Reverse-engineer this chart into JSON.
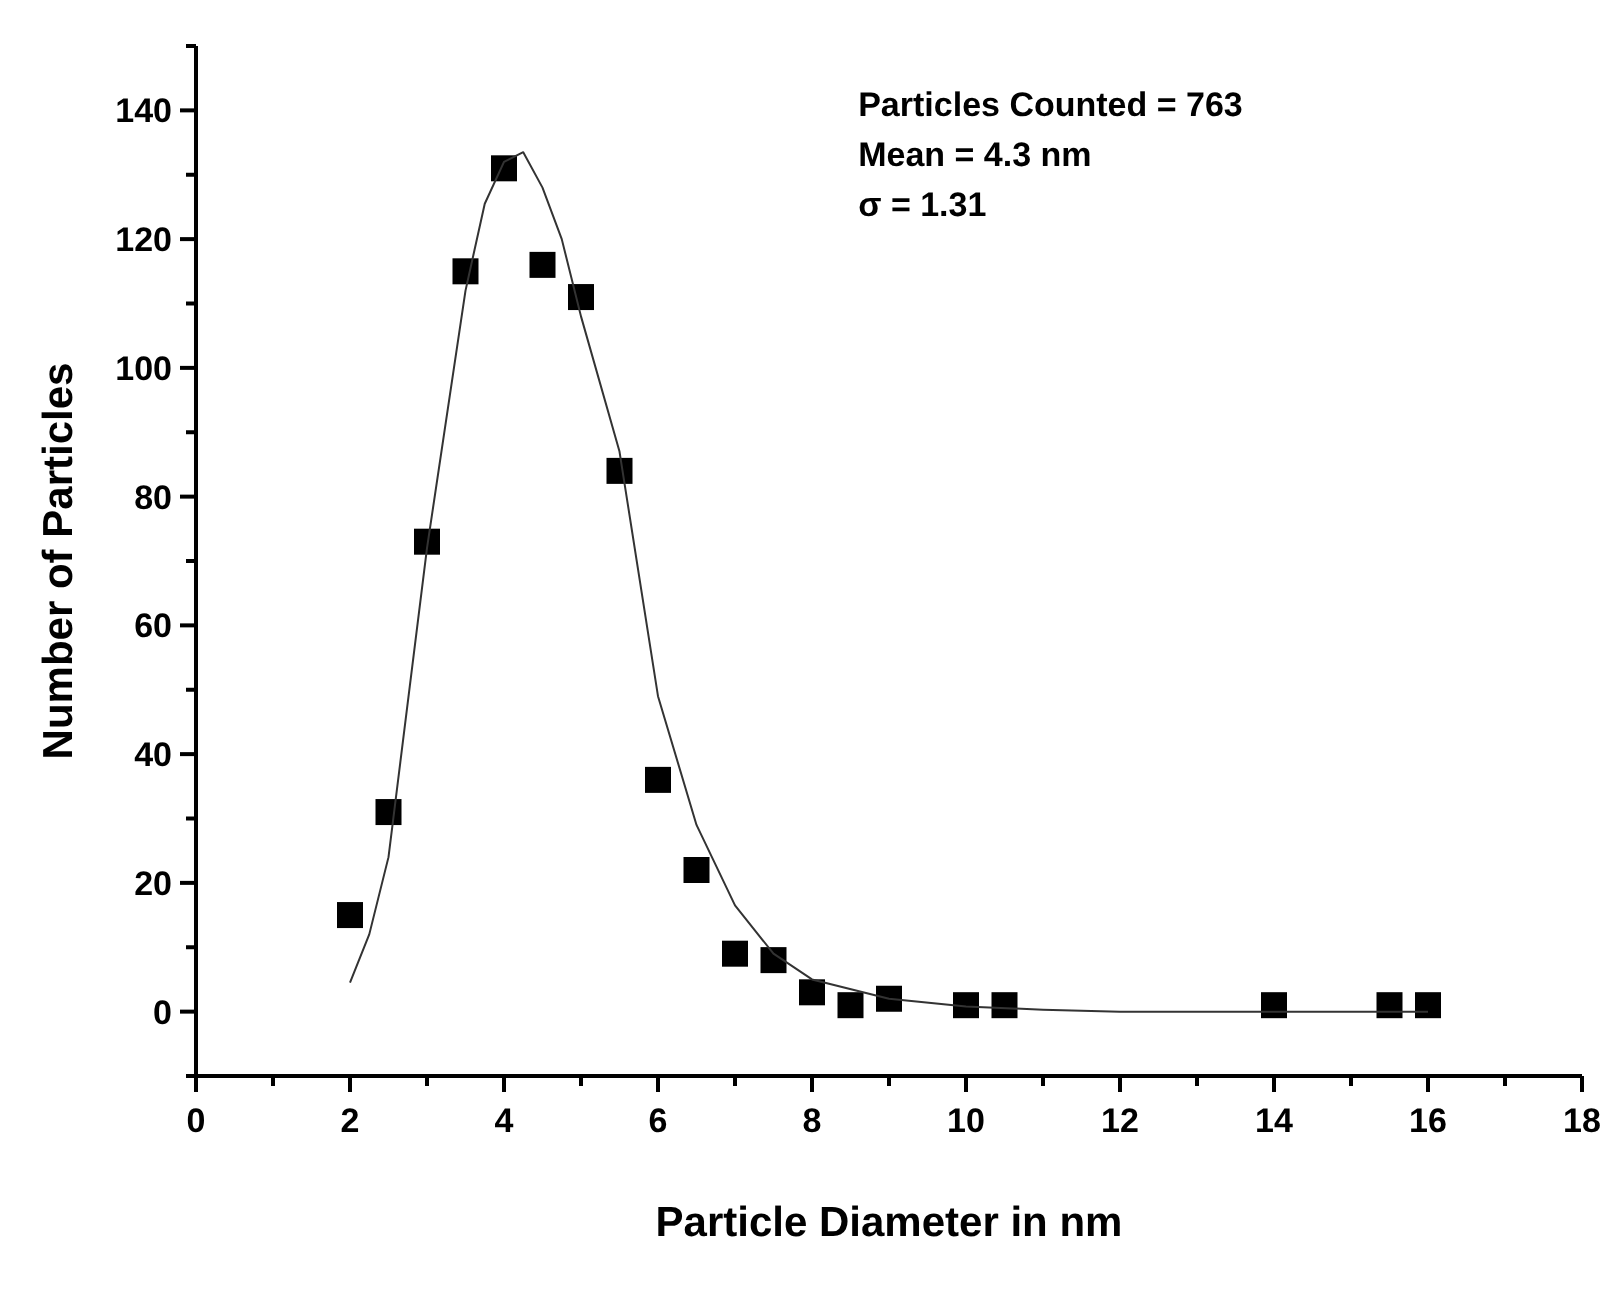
{
  "chart_data": {
    "type": "scatter",
    "xlabel": "Particle Diameter in nm",
    "ylabel": "Number of Particles",
    "annotations": [
      "Particles Counted = 763",
      "Mean = 4.3 nm",
      "σ = 1.31"
    ],
    "xlim": [
      0,
      18
    ],
    "xticks": [
      0,
      2,
      4,
      6,
      8,
      10,
      12,
      14,
      16,
      18
    ],
    "ylim": [
      -10,
      150
    ],
    "yticks": [
      0,
      20,
      40,
      60,
      80,
      100,
      120,
      140
    ],
    "grid": false,
    "series": [
      {
        "marker": "square",
        "color": "#000000",
        "x": [
          2,
          2.5,
          3,
          3.5,
          4,
          4.5,
          5,
          5.5,
          6,
          6.5,
          7,
          7.5,
          8,
          8.5,
          9,
          10,
          10.5,
          14,
          15.5,
          16
        ],
        "values": [
          15,
          31,
          73,
          115,
          131,
          116,
          111,
          84,
          36,
          22,
          9,
          8,
          3,
          1,
          2,
          1,
          1,
          1,
          1,
          1
        ]
      },
      {
        "type": "line",
        "line_style": "solid",
        "color": "#333333",
        "x": [
          2,
          2.25,
          2.5,
          3,
          3.5,
          3.75,
          4,
          4.25,
          4.5,
          4.75,
          5,
          5.5,
          6,
          6.5,
          7,
          7.5,
          8,
          9,
          10,
          11,
          12,
          14,
          16
        ],
        "values": [
          4.5,
          12,
          24,
          72,
          112,
          125.5,
          132,
          133.5,
          128,
          120,
          108,
          87,
          49,
          29,
          16.5,
          9,
          5,
          2,
          0.8,
          0.3,
          0,
          0,
          0
        ]
      }
    ]
  }
}
